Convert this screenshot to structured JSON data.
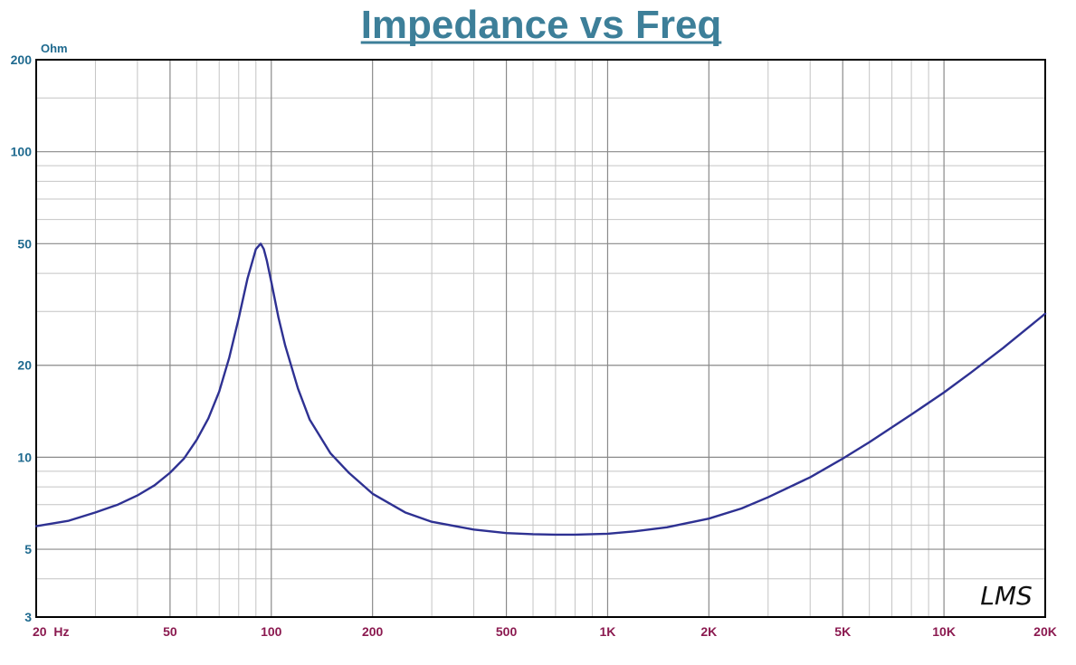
{
  "chart_data": {
    "type": "line",
    "title": "Impedance vs Freq",
    "ylabel": "Ohm",
    "xscale": "log",
    "yscale": "log",
    "xlim": [
      20,
      20000
    ],
    "ylim": [
      3,
      200
    ],
    "grid": true,
    "x_ticks": [
      {
        "value": 20,
        "label": "20  Hz"
      },
      {
        "value": 50,
        "label": "50"
      },
      {
        "value": 100,
        "label": "100"
      },
      {
        "value": 200,
        "label": "200"
      },
      {
        "value": 500,
        "label": "500"
      },
      {
        "value": 1000,
        "label": "1K"
      },
      {
        "value": 2000,
        "label": "2K"
      },
      {
        "value": 5000,
        "label": "5K"
      },
      {
        "value": 10000,
        "label": "10K"
      },
      {
        "value": 20000,
        "label": "20K"
      }
    ],
    "y_ticks": [
      {
        "value": 3,
        "label": "3"
      },
      {
        "value": 5,
        "label": "5"
      },
      {
        "value": 10,
        "label": "10"
      },
      {
        "value": 20,
        "label": "20"
      },
      {
        "value": 50,
        "label": "50"
      },
      {
        "value": 100,
        "label": "100"
      },
      {
        "value": 200,
        "label": "200"
      }
    ],
    "series": [
      {
        "color": "#2e3192",
        "x": [
          20,
          25,
          30,
          35,
          40,
          45,
          50,
          55,
          60,
          65,
          70,
          75,
          80,
          85,
          90,
          93,
          95,
          97,
          100,
          105,
          110,
          120,
          130,
          150,
          170,
          200,
          250,
          300,
          400,
          500,
          600,
          700,
          800,
          1000,
          1200,
          1500,
          2000,
          2500,
          3000,
          4000,
          5000,
          6000,
          8000,
          10000,
          12000,
          15000,
          20000
        ],
        "y": [
          5.95,
          6.2,
          6.6,
          7.0,
          7.5,
          8.1,
          8.9,
          9.9,
          11.4,
          13.4,
          16.4,
          21.2,
          28.5,
          38.5,
          48,
          50,
          48,
          44,
          37.5,
          28.7,
          23.2,
          16.8,
          13.3,
          10.3,
          8.9,
          7.6,
          6.6,
          6.15,
          5.8,
          5.65,
          5.6,
          5.58,
          5.58,
          5.62,
          5.72,
          5.9,
          6.3,
          6.8,
          7.4,
          8.6,
          9.9,
          11.2,
          13.8,
          16.3,
          18.9,
          22.8,
          29.5
        ]
      }
    ],
    "logo": "LMS"
  }
}
